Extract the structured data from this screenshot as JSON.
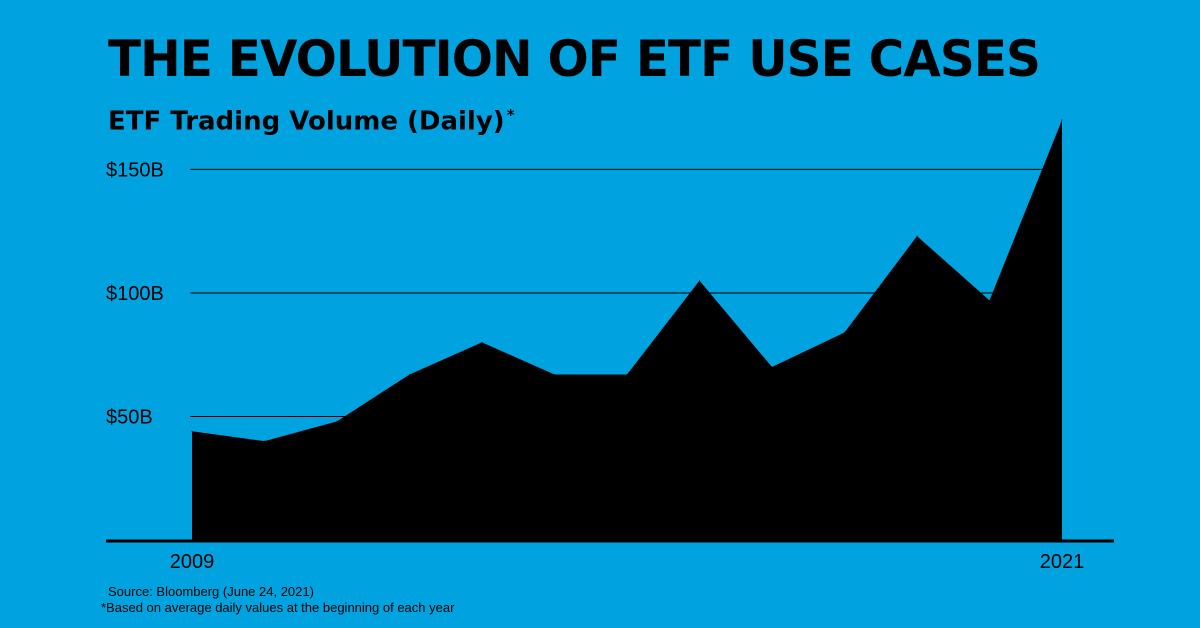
{
  "colors": {
    "background": "#00A3E0",
    "area_fill": "#000000",
    "text": "#000000"
  },
  "chart_data": {
    "type": "area",
    "title": "THE EVOLUTION OF ETF USE  CASES",
    "subtitle": "ETF Trading Volume (Daily)",
    "subtitle_mark": "*",
    "x": [
      2009,
      2010,
      2011,
      2012,
      2013,
      2014,
      2015,
      2016,
      2017,
      2018,
      2019,
      2020,
      2021
    ],
    "x_tick_labels": [
      {
        "x": 2009,
        "label": "2009"
      },
      {
        "x": 2021,
        "label": "2021"
      }
    ],
    "series": [
      {
        "values": [
          44,
          40,
          48,
          67,
          80,
          67,
          67,
          105,
          70,
          84,
          123,
          97,
          170
        ]
      }
    ],
    "y_ticks": [
      {
        "value": 50,
        "label": "$50B"
      },
      {
        "value": 100,
        "label": "$100B"
      },
      {
        "value": 150,
        "label": "$150B"
      }
    ],
    "ylim": [
      0,
      170
    ],
    "xlabel": "",
    "ylabel": "",
    "grid": true,
    "legend": "none"
  },
  "notes": {
    "source": "Source: Bloomberg (June 24, 2021)",
    "footnote": "*Based on average daily values at the beginning of each year"
  }
}
